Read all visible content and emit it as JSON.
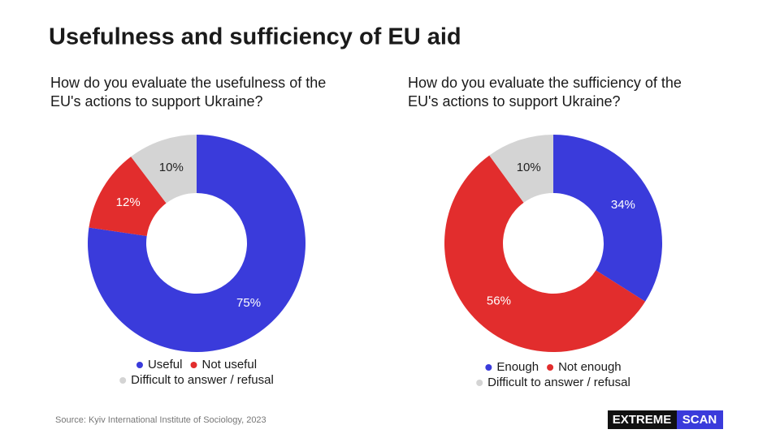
{
  "title": "Usefulness and sufficiency of EU aid",
  "chart_data": [
    {
      "type": "pie",
      "title": "How do you evaluate the usefulness of the EU's actions to support Ukraine?",
      "categories": [
        "Useful",
        "Not useful",
        "Difficult to answer / refusal"
      ],
      "values": [
        75,
        12,
        10
      ],
      "value_labels": [
        "75%",
        "12%",
        "10%"
      ],
      "colors": [
        "#3a3bdb",
        "#e22d2d",
        "#d4d4d4"
      ]
    },
    {
      "type": "pie",
      "title": "How do you evaluate the sufficiency of the EU's actions to support Ukraine?",
      "categories": [
        "Enough",
        "Not enough",
        "Difficult to answer / refusal"
      ],
      "values": [
        34,
        56,
        10
      ],
      "value_labels": [
        "34%",
        "56%",
        "10%"
      ],
      "colors": [
        "#3a3bdb",
        "#e22d2d",
        "#d4d4d4"
      ]
    }
  ],
  "source": "Source: Kyiv International Institute of Sociology, 2023",
  "logo": {
    "first": "EXTREME",
    "second": "SCAN"
  }
}
